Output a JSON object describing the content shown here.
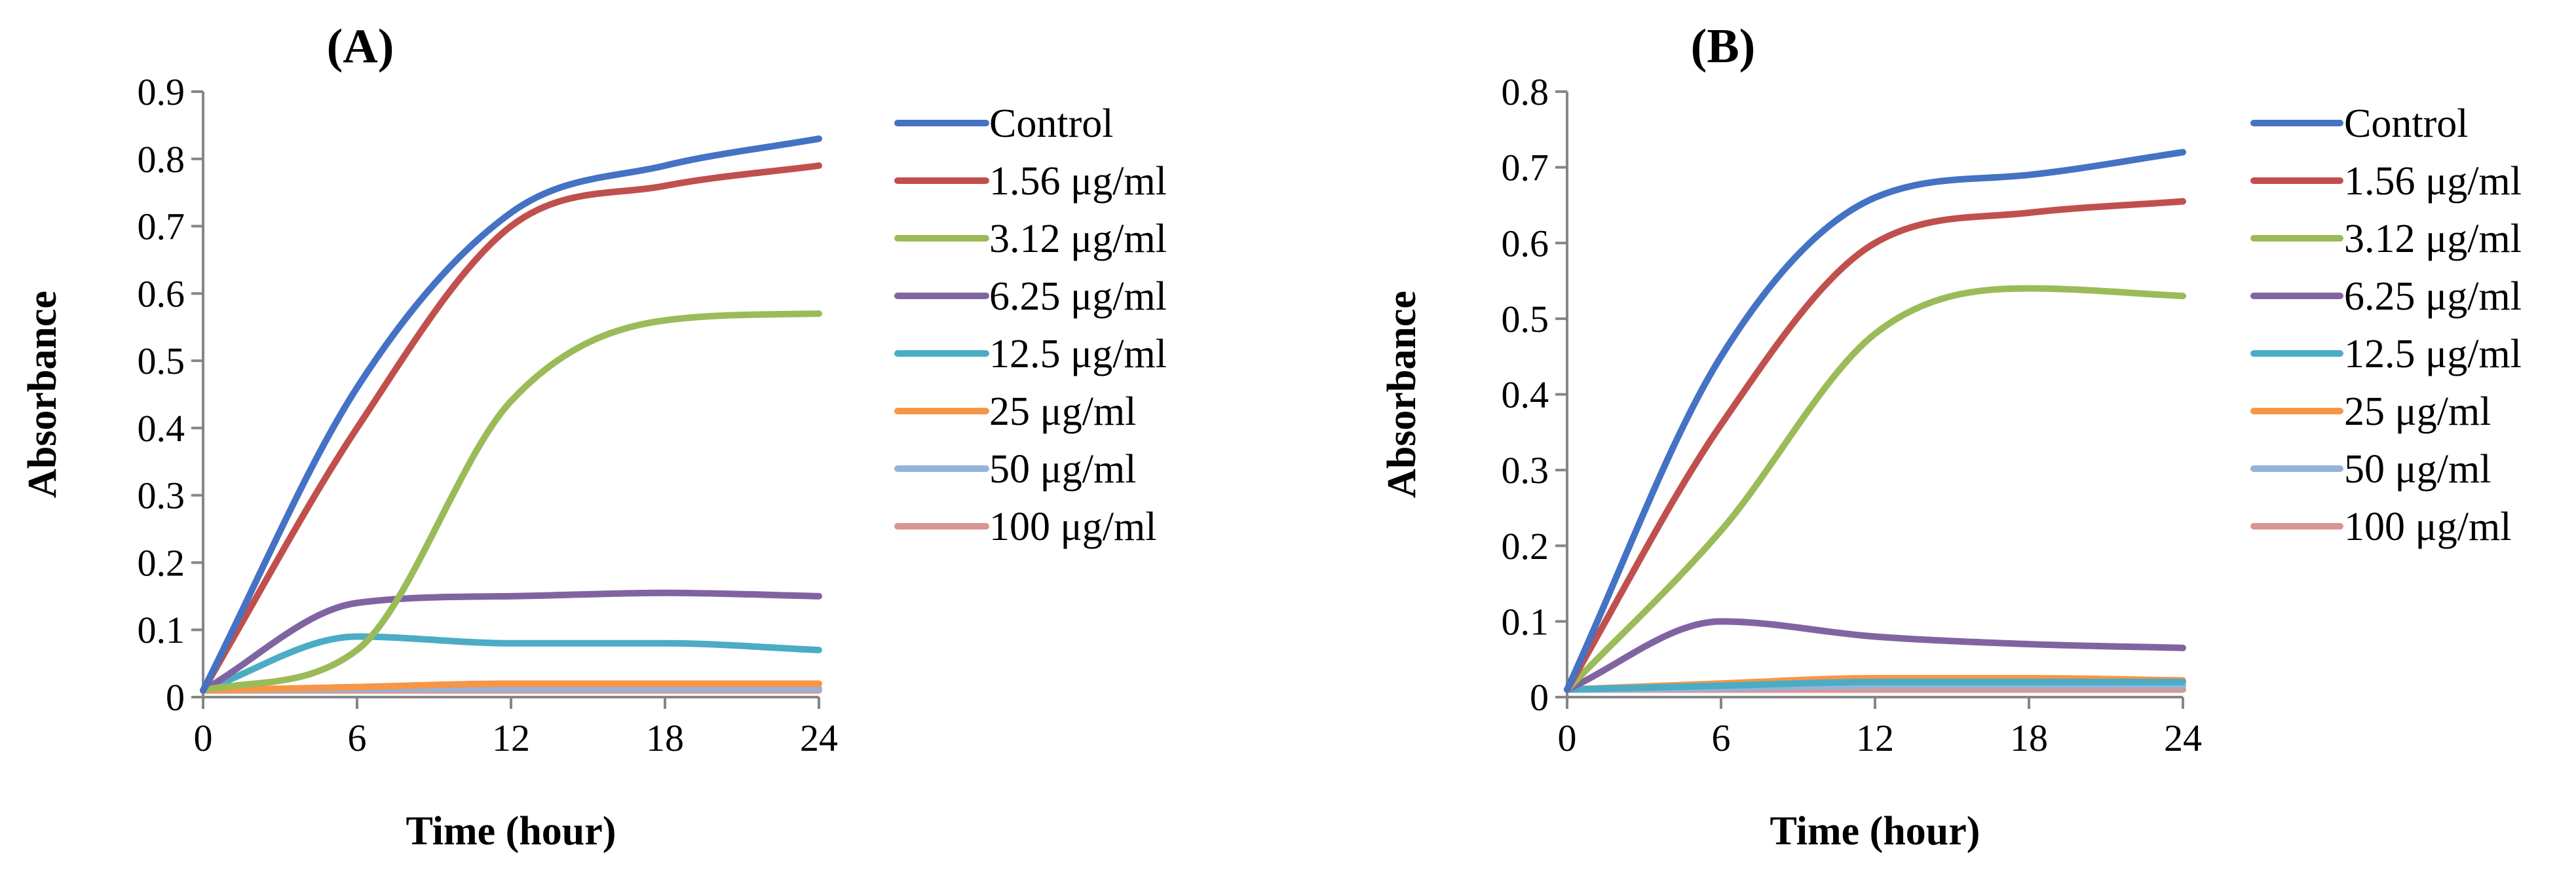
{
  "chart_data": [
    {
      "type": "line",
      "panel_label": "(A)",
      "xlabel": "Time (hour)",
      "ylabel": "Absorbance",
      "x": [
        0,
        6,
        12,
        18,
        24
      ],
      "xticks": [
        "0",
        "6",
        "12",
        "18",
        "24"
      ],
      "xlim": [
        0,
        24
      ],
      "yticks": [
        "0",
        "0.1",
        "0.2",
        "0.3",
        "0.4",
        "0.5",
        "0.6",
        "0.7",
        "0.8",
        "0.9"
      ],
      "ylim": [
        0,
        0.9
      ],
      "grid": false,
      "legend_position": "right",
      "series": [
        {
          "name": "Control",
          "color": "#4472C4",
          "values": [
            0.01,
            0.46,
            0.72,
            0.79,
            0.83
          ]
        },
        {
          "name": "1.56 μg/ml",
          "color": "#C0504D",
          "values": [
            0.01,
            0.4,
            0.7,
            0.76,
            0.79
          ]
        },
        {
          "name": "3.12 μg/ml",
          "color": "#9BBB59",
          "values": [
            0.01,
            0.07,
            0.44,
            0.56,
            0.57
          ]
        },
        {
          "name": "6.25 μg/ml",
          "color": "#8064A2",
          "values": [
            0.01,
            0.14,
            0.15,
            0.155,
            0.15
          ]
        },
        {
          "name": "12.5 μg/ml",
          "color": "#4BACC6",
          "values": [
            0.01,
            0.09,
            0.08,
            0.08,
            0.07
          ]
        },
        {
          "name": "25 μg/ml",
          "color": "#F79646",
          "values": [
            0.01,
            0.015,
            0.02,
            0.02,
            0.02
          ]
        },
        {
          "name": "50 μg/ml",
          "color": "#95B3D7",
          "values": [
            0.01,
            0.012,
            0.013,
            0.013,
            0.013
          ]
        },
        {
          "name": "100 μg/ml",
          "color": "#D99694",
          "values": [
            0.01,
            0.01,
            0.01,
            0.01,
            0.01
          ]
        }
      ]
    },
    {
      "type": "line",
      "panel_label": "(B)",
      "xlabel": "Time (hour)",
      "ylabel": "Absorbance",
      "x": [
        0,
        6,
        12,
        18,
        24
      ],
      "xticks": [
        "0",
        "6",
        "12",
        "18",
        "24"
      ],
      "xlim": [
        0,
        24
      ],
      "yticks": [
        "0",
        "0.1",
        "0.2",
        "0.3",
        "0.4",
        "0.5",
        "0.6",
        "0.7",
        "0.8"
      ],
      "ylim": [
        0,
        0.8
      ],
      "grid": false,
      "legend_position": "right",
      "series": [
        {
          "name": "Control",
          "color": "#4472C4",
          "values": [
            0.01,
            0.45,
            0.66,
            0.69,
            0.72
          ]
        },
        {
          "name": "1.56 μg/ml",
          "color": "#C0504D",
          "values": [
            0.01,
            0.36,
            0.6,
            0.64,
            0.655
          ]
        },
        {
          "name": "3.12 μg/ml",
          "color": "#9BBB59",
          "values": [
            0.01,
            0.22,
            0.48,
            0.54,
            0.53
          ]
        },
        {
          "name": "6.25 μg/ml",
          "color": "#8064A2",
          "values": [
            0.01,
            0.1,
            0.08,
            0.07,
            0.065
          ]
        },
        {
          "name": "12.5 μg/ml",
          "color": "#4BACC6",
          "values": [
            0.01,
            0.015,
            0.02,
            0.02,
            0.02
          ]
        },
        {
          "name": "25 μg/ml",
          "color": "#F79646",
          "values": [
            0.01,
            0.018,
            0.025,
            0.025,
            0.022
          ]
        },
        {
          "name": "50 μg/ml",
          "color": "#95B3D7",
          "values": [
            0.01,
            0.012,
            0.015,
            0.015,
            0.015
          ]
        },
        {
          "name": "100 μg/ml",
          "color": "#D99694",
          "values": [
            0.01,
            0.01,
            0.01,
            0.01,
            0.01
          ]
        }
      ]
    }
  ]
}
